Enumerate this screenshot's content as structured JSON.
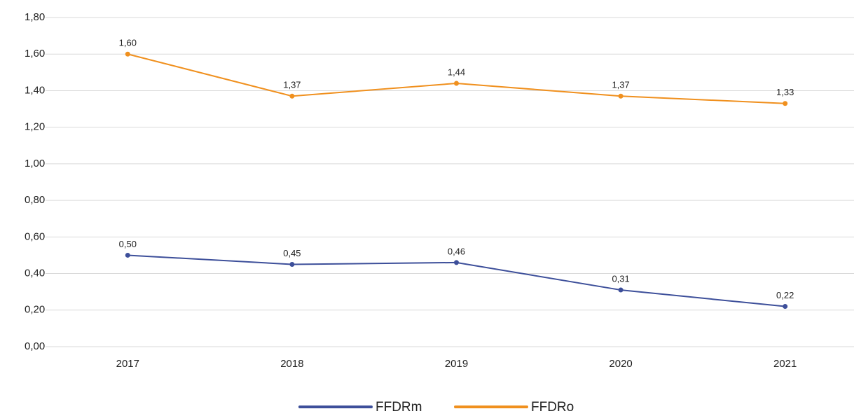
{
  "chart_data": {
    "type": "line",
    "categories": [
      "2017",
      "2018",
      "2019",
      "2020",
      "2021"
    ],
    "series": [
      {
        "name": "FFDRm",
        "color": "#3d4f9a",
        "values": [
          0.5,
          0.45,
          0.46,
          0.31,
          0.22
        ],
        "value_labels": [
          "0,50",
          "0,45",
          "0,46",
          "0,31",
          "0,22"
        ]
      },
      {
        "name": "FFDRo",
        "color": "#f0901e",
        "values": [
          1.6,
          1.37,
          1.44,
          1.37,
          1.33
        ],
        "value_labels": [
          "1,60",
          "1,37",
          "1,44",
          "1,37",
          "1,33"
        ]
      }
    ],
    "ylim": [
      0,
      1.8
    ],
    "yticks": [
      {
        "value": 0,
        "label": "0,00"
      },
      {
        "value": 0.2,
        "label": "0,20"
      },
      {
        "value": 0.4,
        "label": "0,40"
      },
      {
        "value": 0.6,
        "label": "0,60"
      },
      {
        "value": 0.8,
        "label": "0,80"
      },
      {
        "value": 1.0,
        "label": "1,00"
      },
      {
        "value": 1.2,
        "label": "1,20"
      },
      {
        "value": 1.4,
        "label": "1,40"
      },
      {
        "value": 1.6,
        "label": "1,60"
      },
      {
        "value": 1.8,
        "label": "1,80"
      }
    ],
    "grid": true,
    "legend": "bottom"
  }
}
